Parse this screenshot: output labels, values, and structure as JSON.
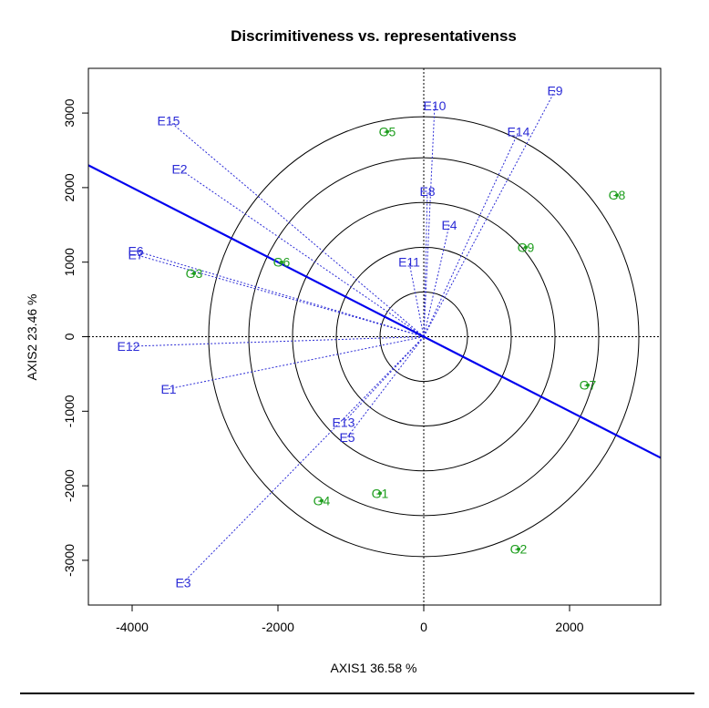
{
  "chart_data": {
    "type": "scatter",
    "title": "Discrimitiveness vs. representativenss",
    "xlabel": "AXIS1 36.58 %",
    "ylabel": "AXIS2 23.46 %",
    "xlim": [
      -4600,
      3250
    ],
    "ylim": [
      -3600,
      3600
    ],
    "xticks": [
      -4000,
      -2000,
      0,
      2000
    ],
    "yticks": [
      -3000,
      -2000,
      -1000,
      0,
      1000,
      2000,
      3000
    ],
    "grid": false,
    "circles_radii": [
      600,
      1200,
      1800,
      2400,
      2950
    ],
    "reference_line": {
      "slope": -0.5,
      "color": "#0000ee"
    },
    "environments": [
      {
        "name": "E15",
        "x": -3500,
        "y": 2900
      },
      {
        "name": "E2",
        "x": -3350,
        "y": 2250
      },
      {
        "name": "E6",
        "x": -3950,
        "y": 1150
      },
      {
        "name": "E7",
        "x": -3950,
        "y": 1100
      },
      {
        "name": "E12",
        "x": -4050,
        "y": -130
      },
      {
        "name": "E1",
        "x": -3500,
        "y": -700
      },
      {
        "name": "E3",
        "x": -3300,
        "y": -3300
      },
      {
        "name": "E13",
        "x": -1100,
        "y": -1150
      },
      {
        "name": "E5",
        "x": -1050,
        "y": -1350
      },
      {
        "name": "E11",
        "x": -200,
        "y": 1000
      },
      {
        "name": "E8",
        "x": 50,
        "y": 1950
      },
      {
        "name": "E4",
        "x": 350,
        "y": 1500
      },
      {
        "name": "E10",
        "x": 150,
        "y": 3100
      },
      {
        "name": "E14",
        "x": 1300,
        "y": 2750
      },
      {
        "name": "E9",
        "x": 1800,
        "y": 3300
      }
    ],
    "genotypes": [
      {
        "name": "G1",
        "x": -600,
        "y": -2100
      },
      {
        "name": "G2",
        "x": 1300,
        "y": -2850
      },
      {
        "name": "G3",
        "x": -3150,
        "y": 850
      },
      {
        "name": "G4",
        "x": -1400,
        "y": -2200
      },
      {
        "name": "G5",
        "x": -500,
        "y": 2750
      },
      {
        "name": "G6",
        "x": -1950,
        "y": 1000
      },
      {
        "name": "G7",
        "x": 2250,
        "y": -650
      },
      {
        "name": "G8",
        "x": 2650,
        "y": 1900
      },
      {
        "name": "G9",
        "x": 1400,
        "y": 1200
      }
    ],
    "colors": {
      "environments": "#2b2bd6",
      "genotypes": "#1e9e1e",
      "line": "#0000ee",
      "circles": "#000000"
    }
  }
}
